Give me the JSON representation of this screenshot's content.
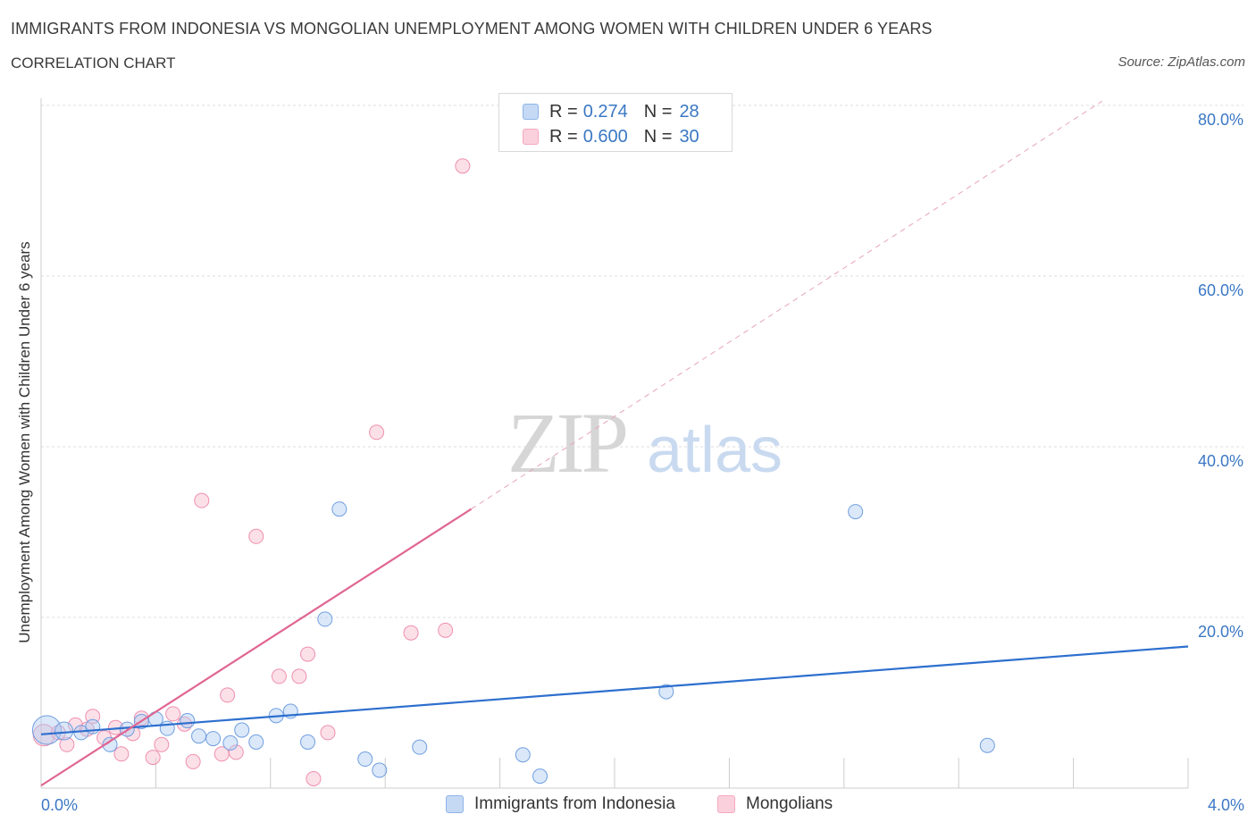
{
  "header": {
    "title": "IMMIGRANTS FROM INDONESIA VS MONGOLIAN UNEMPLOYMENT AMONG WOMEN WITH CHILDREN UNDER 6 YEARS",
    "subtitle": "CORRELATION CHART",
    "source": "Source: ZipAtlas.com"
  },
  "watermark": {
    "zip": "ZIP",
    "atlas": "atlas"
  },
  "legend_top": [
    {
      "r_label": "R =",
      "r_value": "0.274",
      "n_label": "N =",
      "n_value": "28"
    },
    {
      "r_label": "R =",
      "r_value": "0.600",
      "n_label": "N =",
      "n_value": "30"
    }
  ],
  "legend_bottom": [
    {
      "label": "Immigrants from Indonesia"
    },
    {
      "label": "Mongolians"
    }
  ],
  "chart_data": {
    "type": "scatter",
    "title": "IMMIGRANTS FROM INDONESIA VS MONGOLIAN UNEMPLOYMENT AMONG WOMEN WITH CHILDREN UNDER 6 YEARS",
    "subtitle": "CORRELATION CHART",
    "xlabel": "",
    "ylabel": "Unemployment Among Women with Children Under 6 years",
    "xlim": [
      0,
      4
    ],
    "ylim": [
      0,
      80
    ],
    "x_tick_labels": [
      "0.0%",
      "4.0%"
    ],
    "y_tick_labels": [
      "20.0%",
      "40.0%",
      "60.0%",
      "80.0%"
    ],
    "y_ticks": [
      20,
      40,
      60,
      80
    ],
    "grid": true,
    "legend_position": "top-center",
    "series": [
      {
        "name": "Immigrants from Indonesia",
        "color": "#8fb4e8",
        "line_color": "#2d6fce",
        "r": 0.274,
        "n": 28,
        "trend": {
          "x": [
            0,
            4
          ],
          "y": [
            6.3,
            16.6
          ]
        },
        "points": [
          {
            "x": 0.02,
            "y": 6.8,
            "s": 16
          },
          {
            "x": 0.08,
            "y": 6.7,
            "s": 10
          },
          {
            "x": 0.14,
            "y": 6.5,
            "s": 8
          },
          {
            "x": 0.18,
            "y": 7.2,
            "s": 8
          },
          {
            "x": 0.24,
            "y": 5.1,
            "s": 8
          },
          {
            "x": 0.3,
            "y": 6.9,
            "s": 8
          },
          {
            "x": 0.35,
            "y": 7.8,
            "s": 8
          },
          {
            "x": 0.4,
            "y": 8.1,
            "s": 8
          },
          {
            "x": 0.44,
            "y": 7.0,
            "s": 8
          },
          {
            "x": 0.51,
            "y": 7.9,
            "s": 8
          },
          {
            "x": 0.55,
            "y": 6.1,
            "s": 8
          },
          {
            "x": 0.6,
            "y": 5.8,
            "s": 8
          },
          {
            "x": 0.66,
            "y": 5.3,
            "s": 8
          },
          {
            "x": 0.7,
            "y": 6.8,
            "s": 8
          },
          {
            "x": 0.75,
            "y": 5.4,
            "s": 8
          },
          {
            "x": 0.82,
            "y": 8.5,
            "s": 8
          },
          {
            "x": 0.87,
            "y": 9.0,
            "s": 8
          },
          {
            "x": 0.93,
            "y": 5.4,
            "s": 8
          },
          {
            "x": 0.99,
            "y": 19.8,
            "s": 8
          },
          {
            "x": 1.04,
            "y": 32.7,
            "s": 8
          },
          {
            "x": 1.13,
            "y": 3.4,
            "s": 8
          },
          {
            "x": 1.18,
            "y": 2.1,
            "s": 8
          },
          {
            "x": 1.32,
            "y": 4.8,
            "s": 8
          },
          {
            "x": 1.68,
            "y": 3.9,
            "s": 8
          },
          {
            "x": 1.74,
            "y": 1.4,
            "s": 8
          },
          {
            "x": 2.18,
            "y": 11.3,
            "s": 8
          },
          {
            "x": 2.84,
            "y": 32.4,
            "s": 8
          },
          {
            "x": 3.3,
            "y": 5.0,
            "s": 8
          }
        ]
      },
      {
        "name": "Mongolians",
        "color": "#f4a9c0",
        "line_color": "#e06592",
        "r": 0.6,
        "n": 30,
        "trend": {
          "x": [
            0,
            1.5
          ],
          "y": [
            0.3,
            32.7
          ]
        },
        "trend_ext": {
          "x": [
            1.5,
            3.7
          ],
          "y": [
            32.7,
            80.5
          ]
        },
        "points": [
          {
            "x": 0.01,
            "y": 6.2,
            "s": 12
          },
          {
            "x": 0.06,
            "y": 6.5,
            "s": 8
          },
          {
            "x": 0.09,
            "y": 5.1,
            "s": 8
          },
          {
            "x": 0.12,
            "y": 7.4,
            "s": 8
          },
          {
            "x": 0.16,
            "y": 6.9,
            "s": 8
          },
          {
            "x": 0.18,
            "y": 8.4,
            "s": 8
          },
          {
            "x": 0.22,
            "y": 5.9,
            "s": 8
          },
          {
            "x": 0.26,
            "y": 7.1,
            "s": 8
          },
          {
            "x": 0.28,
            "y": 4.0,
            "s": 8
          },
          {
            "x": 0.32,
            "y": 6.4,
            "s": 8
          },
          {
            "x": 0.35,
            "y": 8.2,
            "s": 8
          },
          {
            "x": 0.39,
            "y": 3.6,
            "s": 8
          },
          {
            "x": 0.42,
            "y": 5.1,
            "s": 8
          },
          {
            "x": 0.46,
            "y": 8.7,
            "s": 8
          },
          {
            "x": 0.5,
            "y": 7.5,
            "s": 8
          },
          {
            "x": 0.53,
            "y": 3.1,
            "s": 8
          },
          {
            "x": 0.56,
            "y": 33.7,
            "s": 8
          },
          {
            "x": 0.63,
            "y": 4.0,
            "s": 8
          },
          {
            "x": 0.65,
            "y": 10.9,
            "s": 8
          },
          {
            "x": 0.68,
            "y": 4.2,
            "s": 8
          },
          {
            "x": 0.75,
            "y": 29.5,
            "s": 8
          },
          {
            "x": 0.83,
            "y": 13.1,
            "s": 8
          },
          {
            "x": 0.9,
            "y": 13.1,
            "s": 8
          },
          {
            "x": 0.93,
            "y": 15.7,
            "s": 8
          },
          {
            "x": 0.95,
            "y": 1.1,
            "s": 8
          },
          {
            "x": 1.0,
            "y": 6.5,
            "s": 8
          },
          {
            "x": 1.17,
            "y": 41.7,
            "s": 8
          },
          {
            "x": 1.29,
            "y": 18.2,
            "s": 8
          },
          {
            "x": 1.41,
            "y": 18.5,
            "s": 8
          },
          {
            "x": 1.47,
            "y": 72.9,
            "s": 8
          }
        ]
      }
    ]
  }
}
